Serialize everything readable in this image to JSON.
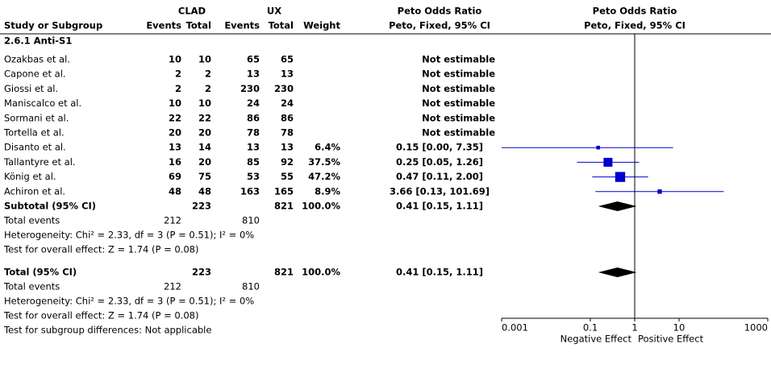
{
  "chart_data": {
    "type": "forest",
    "column_groups": [
      "CLAD",
      "UX",
      "Peto Odds Ratio",
      "Peto Odds Ratio"
    ],
    "columns": [
      "Study or Subgroup",
      "Events",
      "Total",
      "Events",
      "Total",
      "Weight",
      "Peto, Fixed, 95% CI",
      "Peto, Fixed, 95% CI"
    ],
    "subgroup": "2.6.1 Anti-S1",
    "studies": [
      {
        "name": "Ozakbas et al.",
        "e1": 10,
        "n1": 10,
        "e2": 65,
        "n2": 65,
        "ci_label": "Not estimable"
      },
      {
        "name": "Capone et al.",
        "e1": 2,
        "n1": 2,
        "e2": 13,
        "n2": 13,
        "ci_label": "Not estimable"
      },
      {
        "name": "Giossi et al.",
        "e1": 2,
        "n1": 2,
        "e2": 230,
        "n2": 230,
        "ci_label": "Not estimable"
      },
      {
        "name": "Maniscalco et al.",
        "e1": 10,
        "n1": 10,
        "e2": 24,
        "n2": 24,
        "ci_label": "Not estimable"
      },
      {
        "name": "Sormani et al.",
        "e1": 22,
        "n1": 22,
        "e2": 86,
        "n2": 86,
        "ci_label": "Not estimable"
      },
      {
        "name": "Tortella et al.",
        "e1": 20,
        "n1": 20,
        "e2": 78,
        "n2": 78,
        "ci_label": "Not estimable"
      },
      {
        "name": "Disanto et al.",
        "e1": 13,
        "n1": 14,
        "e2": 13,
        "n2": 13,
        "weight": 6.4,
        "weight_label": "6.4%",
        "or": 0.15,
        "ci": [
          0.0,
          7.35
        ],
        "ci_label": "0.15 [0.00, 7.35]"
      },
      {
        "name": "Tallantyre et al.",
        "e1": 16,
        "n1": 20,
        "e2": 85,
        "n2": 92,
        "weight": 37.5,
        "weight_label": "37.5%",
        "or": 0.25,
        "ci": [
          0.05,
          1.26
        ],
        "ci_label": "0.25 [0.05, 1.26]"
      },
      {
        "name": "König et al.",
        "e1": 69,
        "n1": 75,
        "e2": 53,
        "n2": 55,
        "weight": 47.2,
        "weight_label": "47.2%",
        "or": 0.47,
        "ci": [
          0.11,
          2.0
        ],
        "ci_label": "0.47 [0.11, 2.00]"
      },
      {
        "name": "Achiron et al.",
        "e1": 48,
        "n1": 48,
        "e2": 163,
        "n2": 165,
        "weight": 8.9,
        "weight_label": "8.9%",
        "or": 3.66,
        "ci": [
          0.13,
          101.69
        ],
        "ci_label": "3.66 [0.13, 101.69]"
      }
    ],
    "summaries": [
      {
        "name": "Subtotal (95% CI)",
        "n1": 223,
        "n2": 821,
        "weight": 100,
        "weight_label": "100.0%",
        "or": 0.41,
        "ci": [
          0.15,
          1.11
        ],
        "ci_label": "0.41 [0.15, 1.11]",
        "events_name": "Total events",
        "e1": 212,
        "e2": 810,
        "notes": [
          "Heterogeneity: Chi² = 2.33, df = 3 (P = 0.51); I² = 0%",
          "Test for overall effect: Z = 1.74 (P = 0.08)"
        ]
      },
      {
        "name": "Total (95% CI)",
        "n1": 223,
        "n2": 821,
        "weight": 100,
        "weight_label": "100.0%",
        "or": 0.41,
        "ci": [
          0.15,
          1.11
        ],
        "ci_label": "0.41 [0.15, 1.11]",
        "events_name": "Total events",
        "e1": 212,
        "e2": 810,
        "notes": [
          "Heterogeneity: Chi² = 2.33, df = 3 (P = 0.51); I² = 0%",
          "Test for overall effect: Z = 1.74 (P = 0.08)",
          "Test for subgroup differences: Not applicable"
        ]
      }
    ],
    "xlim": [
      0.001,
      1000
    ],
    "xticks": [
      0.001,
      0.1,
      1,
      10,
      1000
    ],
    "log_x": true,
    "favours": [
      "Negative Effect",
      "Positive Effect"
    ],
    "marker_color": "#0000cc",
    "diamond_color": "#000000"
  }
}
